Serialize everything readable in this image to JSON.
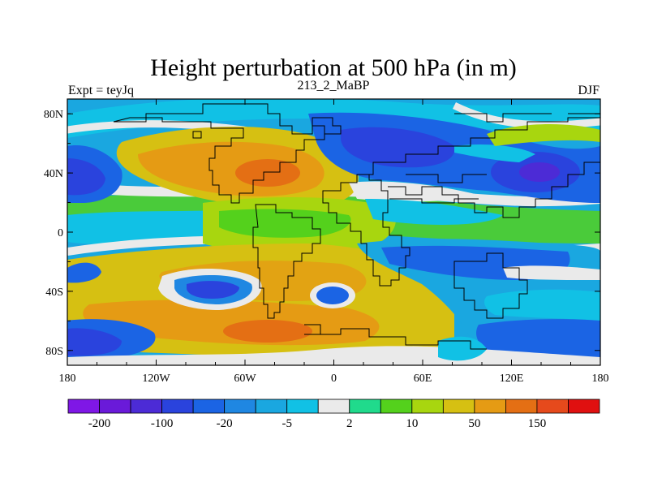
{
  "title": "Height perturbation at 500 hPa (in m)",
  "subtitle_left": "Expt = teyJq",
  "subtitle_center": "213_2_MaBP",
  "subtitle_right": "DJF",
  "map": {
    "projection": "cylindrical-equidistant",
    "lon_range": [
      -180,
      180
    ],
    "lat_range": [
      -90,
      90
    ],
    "x_ticks": [
      {
        "value": -180,
        "label": "180"
      },
      {
        "value": -120,
        "label": "120W"
      },
      {
        "value": -60,
        "label": "60W"
      },
      {
        "value": 0,
        "label": "0"
      },
      {
        "value": 60,
        "label": "60E"
      },
      {
        "value": 120,
        "label": "120E"
      },
      {
        "value": 180,
        "label": "180"
      }
    ],
    "y_ticks": [
      {
        "value": 80,
        "label": "80N"
      },
      {
        "value": 40,
        "label": "40N"
      },
      {
        "value": 0,
        "label": "0"
      },
      {
        "value": -40,
        "label": "40S"
      },
      {
        "value": -80,
        "label": "80S"
      }
    ]
  },
  "colorbar": {
    "colors": [
      "#7f17e6",
      "#6a1ad9",
      "#4c2bd6",
      "#2a43dd",
      "#1b64e4",
      "#1f87e2",
      "#1aa7e0",
      "#11c1e5",
      "#eaeaea",
      "#20da8c",
      "#54d11c",
      "#a8d60f",
      "#d6c012",
      "#e59b14",
      "#e46f14",
      "#e64a1c",
      "#e01010"
    ],
    "labels": [
      "-200",
      "-100",
      "-20",
      "-5",
      "2",
      "10",
      "50",
      "150"
    ]
  }
}
